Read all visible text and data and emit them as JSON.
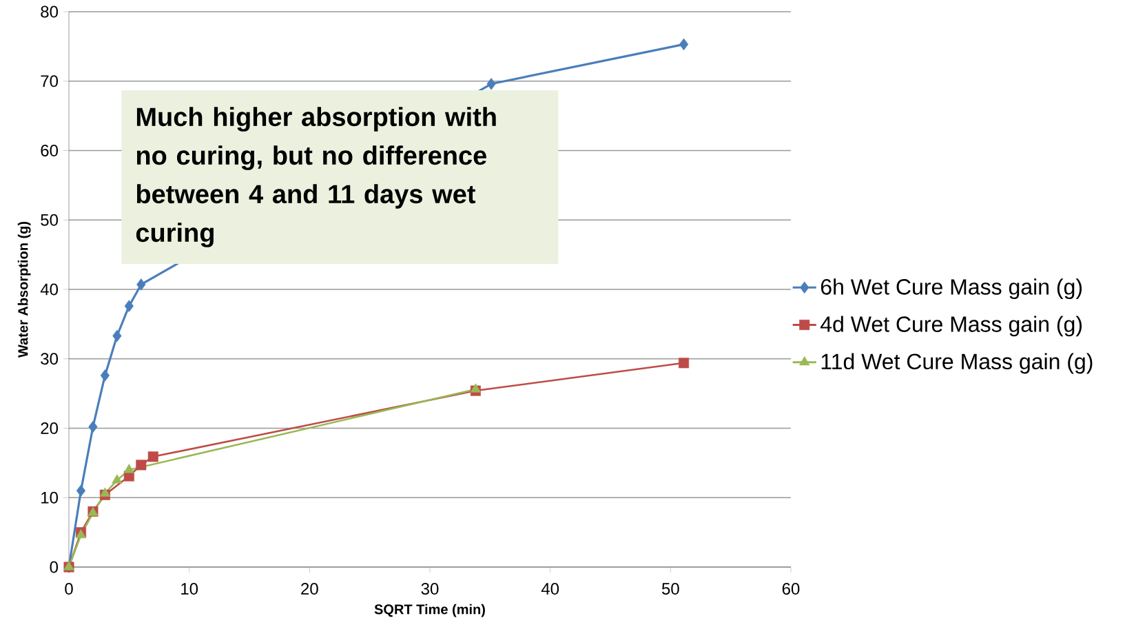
{
  "chart_data": {
    "type": "line",
    "xlabel": "SQRT Time (min)",
    "ylabel": "Water  Absorption (g)",
    "xlim": [
      0,
      60
    ],
    "xticks": [
      0,
      10,
      20,
      30,
      40,
      50,
      60
    ],
    "ylim": [
      0,
      80
    ],
    "yticks": [
      0,
      10,
      20,
      30,
      40,
      50,
      60,
      70,
      80
    ],
    "grid": "y",
    "legend": "right",
    "annotations": [
      "Much higher absorption with no curing, but no difference between 4 and 11 days wet curing"
    ],
    "series": [
      {
        "name": "6h Wet Cure Mass gain (g)",
        "color": "#4a7ebb",
        "marker": "diamond",
        "x": [
          0,
          1,
          2,
          3,
          4,
          5,
          6,
          35.1,
          51.1
        ],
        "values": [
          0,
          11,
          20.2,
          27.6,
          33.3,
          37.6,
          40.7,
          69.6,
          75.3
        ]
      },
      {
        "name": "4d Wet Cure Mass gain (g)",
        "color": "#be4b48",
        "marker": "square",
        "x": [
          0,
          1,
          2,
          3,
          5,
          6,
          7,
          33.8,
          51.1
        ],
        "values": [
          0,
          5,
          8,
          10.4,
          13.1,
          14.7,
          15.9,
          25.4,
          29.4
        ]
      },
      {
        "name": "11d Wet Cure Mass gain (g)",
        "color": "#98b954",
        "marker": "triangle",
        "x": [
          0,
          1,
          2,
          3,
          4,
          5,
          33.8
        ],
        "values": [
          0,
          4.6,
          7.8,
          10.6,
          12.5,
          14.0,
          25.6
        ]
      }
    ]
  }
}
